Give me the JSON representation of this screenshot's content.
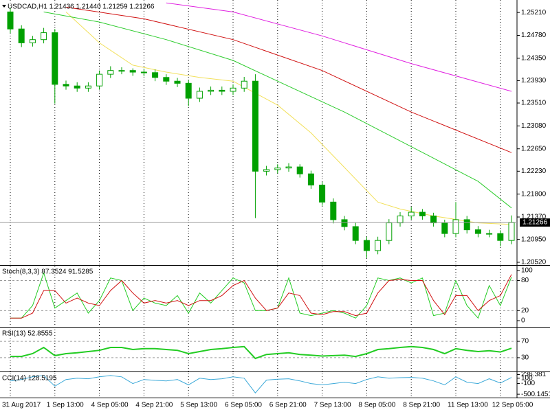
{
  "chart_data": [
    {
      "type": "candlestick",
      "title": "USDCAD,H1 1.21436 1.21440 1.21259 1.21266",
      "categories": [
        "31 Aug 2017",
        null,
        null,
        null,
        "1 Sep 13:00",
        null,
        null,
        null,
        "4 Sep 05:00",
        null,
        null,
        null,
        "4 Sep 21:00",
        null,
        null,
        null,
        "5 Sep 13:00",
        null,
        null,
        null,
        "6 Sep 05:00",
        null,
        null,
        null,
        "6 Sep 21:00",
        null,
        null,
        null,
        "7 Sep 13:00",
        null,
        null,
        null,
        "8 Sep 05:00",
        null,
        null,
        null,
        "8 Sep 21:00",
        null,
        null,
        null,
        "11 Sep 13:00",
        null,
        null,
        null,
        "12 Sep 05:00",
        null
      ],
      "open": [
        1.2522,
        1.249,
        1.2464,
        1.247,
        1.2483,
        1.2386,
        1.2383,
        1.2379,
        1.2383,
        1.2405,
        1.2412,
        1.2412,
        1.2409,
        1.2408,
        1.2399,
        1.2392,
        1.2388,
        1.236,
        1.2373,
        1.2375,
        1.2373,
        1.2379,
        1.2392,
        1.2223,
        1.2226,
        1.2229,
        1.2231,
        1.2218,
        1.2197,
        1.2165,
        1.2132,
        1.2119,
        1.2093,
        1.2074,
        1.2093,
        1.2126,
        1.2139,
        1.2146,
        1.2139,
        1.2126,
        1.2106,
        1.2132,
        1.2113,
        1.2106,
        1.2106,
        1.2093
      ],
      "high": [
        1.253,
        1.2497,
        1.2477,
        1.2492,
        1.249,
        1.2393,
        1.239,
        1.239,
        1.2412,
        1.242,
        1.2418,
        1.2416,
        1.2415,
        1.2414,
        1.2405,
        1.2398,
        1.2394,
        1.238,
        1.2382,
        1.2382,
        1.2386,
        1.24,
        1.2405,
        1.2233,
        1.2236,
        1.2238,
        1.2236,
        1.2224,
        1.2203,
        1.2172,
        1.2139,
        1.2126,
        1.21,
        1.21,
        1.2133,
        1.2146,
        1.2156,
        1.2152,
        1.2145,
        1.2132,
        1.2165,
        1.2139,
        1.212,
        1.2113,
        1.2112,
        1.214
      ],
      "low": [
        1.2482,
        1.2456,
        1.2457,
        1.2463,
        1.235,
        1.2376,
        1.2372,
        1.2372,
        1.2376,
        1.2398,
        1.2405,
        1.2402,
        1.2401,
        1.2392,
        1.2385,
        1.2381,
        1.2345,
        1.2353,
        1.2366,
        1.2366,
        1.2366,
        1.2372,
        1.2135,
        1.2215,
        1.2219,
        1.2222,
        1.2211,
        1.219,
        1.2158,
        1.2125,
        1.2112,
        1.2086,
        1.206,
        1.2067,
        1.2086,
        1.2119,
        1.2132,
        1.2132,
        1.2119,
        1.2099,
        1.2099,
        1.2106,
        1.2099,
        1.2099,
        1.2082,
        1.2086
      ],
      "close": [
        1.249,
        1.2464,
        1.247,
        1.2483,
        1.2386,
        1.2383,
        1.2379,
        1.2383,
        1.2405,
        1.2412,
        1.2412,
        1.2409,
        1.2408,
        1.2399,
        1.2392,
        1.2388,
        1.236,
        1.2373,
        1.2375,
        1.2373,
        1.2379,
        1.2392,
        1.2223,
        1.2226,
        1.2229,
        1.2231,
        1.2218,
        1.2197,
        1.2165,
        1.2132,
        1.2119,
        1.2093,
        1.2074,
        1.2093,
        1.2126,
        1.2139,
        1.2146,
        1.2139,
        1.2126,
        1.2106,
        1.2132,
        1.2113,
        1.2106,
        1.2106,
        1.2093,
        1.2127
      ],
      "up_color": "#00a000",
      "down_color": "#00a000",
      "series": [
        {
          "color": "#f2e05a",
          "x": [
            5,
            8,
            11,
            14,
            17,
            20,
            24,
            27,
            30,
            33,
            35,
            38,
            42,
            45
          ],
          "values": [
            1.2522,
            1.2464,
            1.2422,
            1.2409,
            1.2399,
            1.2392,
            1.2347,
            1.2295,
            1.223,
            1.2165,
            1.2152,
            1.2139,
            1.2126,
            1.2123
          ]
        },
        {
          "color": "#2ecc2e",
          "x": [
            3,
            8,
            14,
            20,
            24,
            30,
            36,
            42,
            45
          ],
          "values": [
            1.2522,
            1.2503,
            1.247,
            1.2431,
            1.2392,
            1.2334,
            1.2269,
            1.2204,
            1.2154
          ]
        },
        {
          "color": "#d01010",
          "x": [
            5,
            12,
            20,
            28,
            36,
            45
          ],
          "values": [
            1.2531,
            1.2509,
            1.247,
            1.2412,
            1.2334,
            1.2258
          ]
        },
        {
          "color": "#e020e0",
          "x": [
            14,
            20,
            28,
            36,
            45
          ],
          "values": [
            1.2539,
            1.2522,
            1.2477,
            1.2425,
            1.2373
          ]
        }
      ],
      "current_price": 1.21266,
      "ylim": [
        1.20481,
        1.25418
      ],
      "yticks": [
        {
          "value": 1.2521,
          "label": "1.25210"
        },
        {
          "value": 1.2478,
          "label": "1.24780"
        },
        {
          "value": 1.2435,
          "label": "1.24350"
        },
        {
          "value": 1.2393,
          "label": "1.23930"
        },
        {
          "value": 1.2351,
          "label": "1.23510"
        },
        {
          "value": 1.2308,
          "label": "1.23080"
        },
        {
          "value": 1.2265,
          "label": "1.22650"
        },
        {
          "value": 1.2223,
          "label": "1.22230"
        },
        {
          "value": 1.218,
          "label": "1.21800"
        },
        {
          "value": 1.2137,
          "label": "1.21370"
        },
        {
          "value": 1.2095,
          "label": "1.20950"
        },
        {
          "value": 1.2052,
          "label": "1.20520"
        }
      ]
    },
    {
      "type": "line",
      "title": "Stoch(8,3,3) 87.3524 91.5285",
      "series": [
        {
          "color": "#22cc22",
          "values": [
            5,
            5,
            30,
            95,
            25,
            40,
            55,
            15,
            40,
            85,
            80,
            20,
            45,
            35,
            30,
            50,
            15,
            55,
            35,
            60,
            85,
            75,
            20,
            20,
            25,
            85,
            15,
            10,
            15,
            20,
            15,
            5,
            30,
            85,
            80,
            85,
            75,
            85,
            10,
            15,
            80,
            30,
            5,
            70,
            30,
            87
          ]
        },
        {
          "color": "#d01010",
          "values": [
            5,
            5,
            15,
            60,
            60,
            35,
            45,
            35,
            30,
            60,
            80,
            55,
            35,
            40,
            35,
            40,
            30,
            40,
            40,
            50,
            70,
            80,
            45,
            20,
            25,
            55,
            50,
            15,
            12,
            18,
            18,
            10,
            15,
            55,
            80,
            82,
            80,
            80,
            40,
            12,
            50,
            50,
            20,
            40,
            50,
            92
          ]
        }
      ],
      "ylim": [
        -11,
        108
      ],
      "yticks": [
        100,
        80,
        20,
        0
      ],
      "levels": [
        80,
        20
      ]
    },
    {
      "type": "line",
      "title": "RSI(13) 52.8555",
      "series": [
        {
          "color": "#22cc22",
          "values": [
            33,
            33,
            40,
            55,
            35,
            40,
            42,
            45,
            48,
            55,
            55,
            50,
            52,
            52,
            50,
            48,
            40,
            45,
            50,
            52,
            55,
            57,
            28,
            38,
            40,
            42,
            38,
            36,
            34,
            35,
            36,
            33,
            40,
            50,
            52,
            55,
            57,
            55,
            50,
            40,
            52,
            48,
            45,
            47,
            44,
            53
          ]
        }
      ],
      "ylim": [
        -2,
        102
      ],
      "yticks": [
        70,
        30
      ],
      "levels": [
        70,
        30
      ]
    },
    {
      "type": "line",
      "title": "CCI(14) 128.5195",
      "series": [
        {
          "color": "#3aa8d8",
          "values": [
            0,
            50,
            150,
            200,
            -200,
            50,
            100,
            80,
            150,
            200,
            150,
            -100,
            50,
            20,
            0,
            50,
            -150,
            100,
            50,
            80,
            150,
            100,
            -450,
            30,
            60,
            80,
            0,
            -100,
            -150,
            -100,
            -50,
            -100,
            50,
            150,
            100,
            120,
            130,
            100,
            0,
            -150,
            150,
            -50,
            -100,
            80,
            -80,
            128.5
          ]
        }
      ],
      "ylim": [
        -600,
        300
      ],
      "yticks": [
        236.381,
        100,
        -100,
        -500.1451
      ]
    }
  ]
}
